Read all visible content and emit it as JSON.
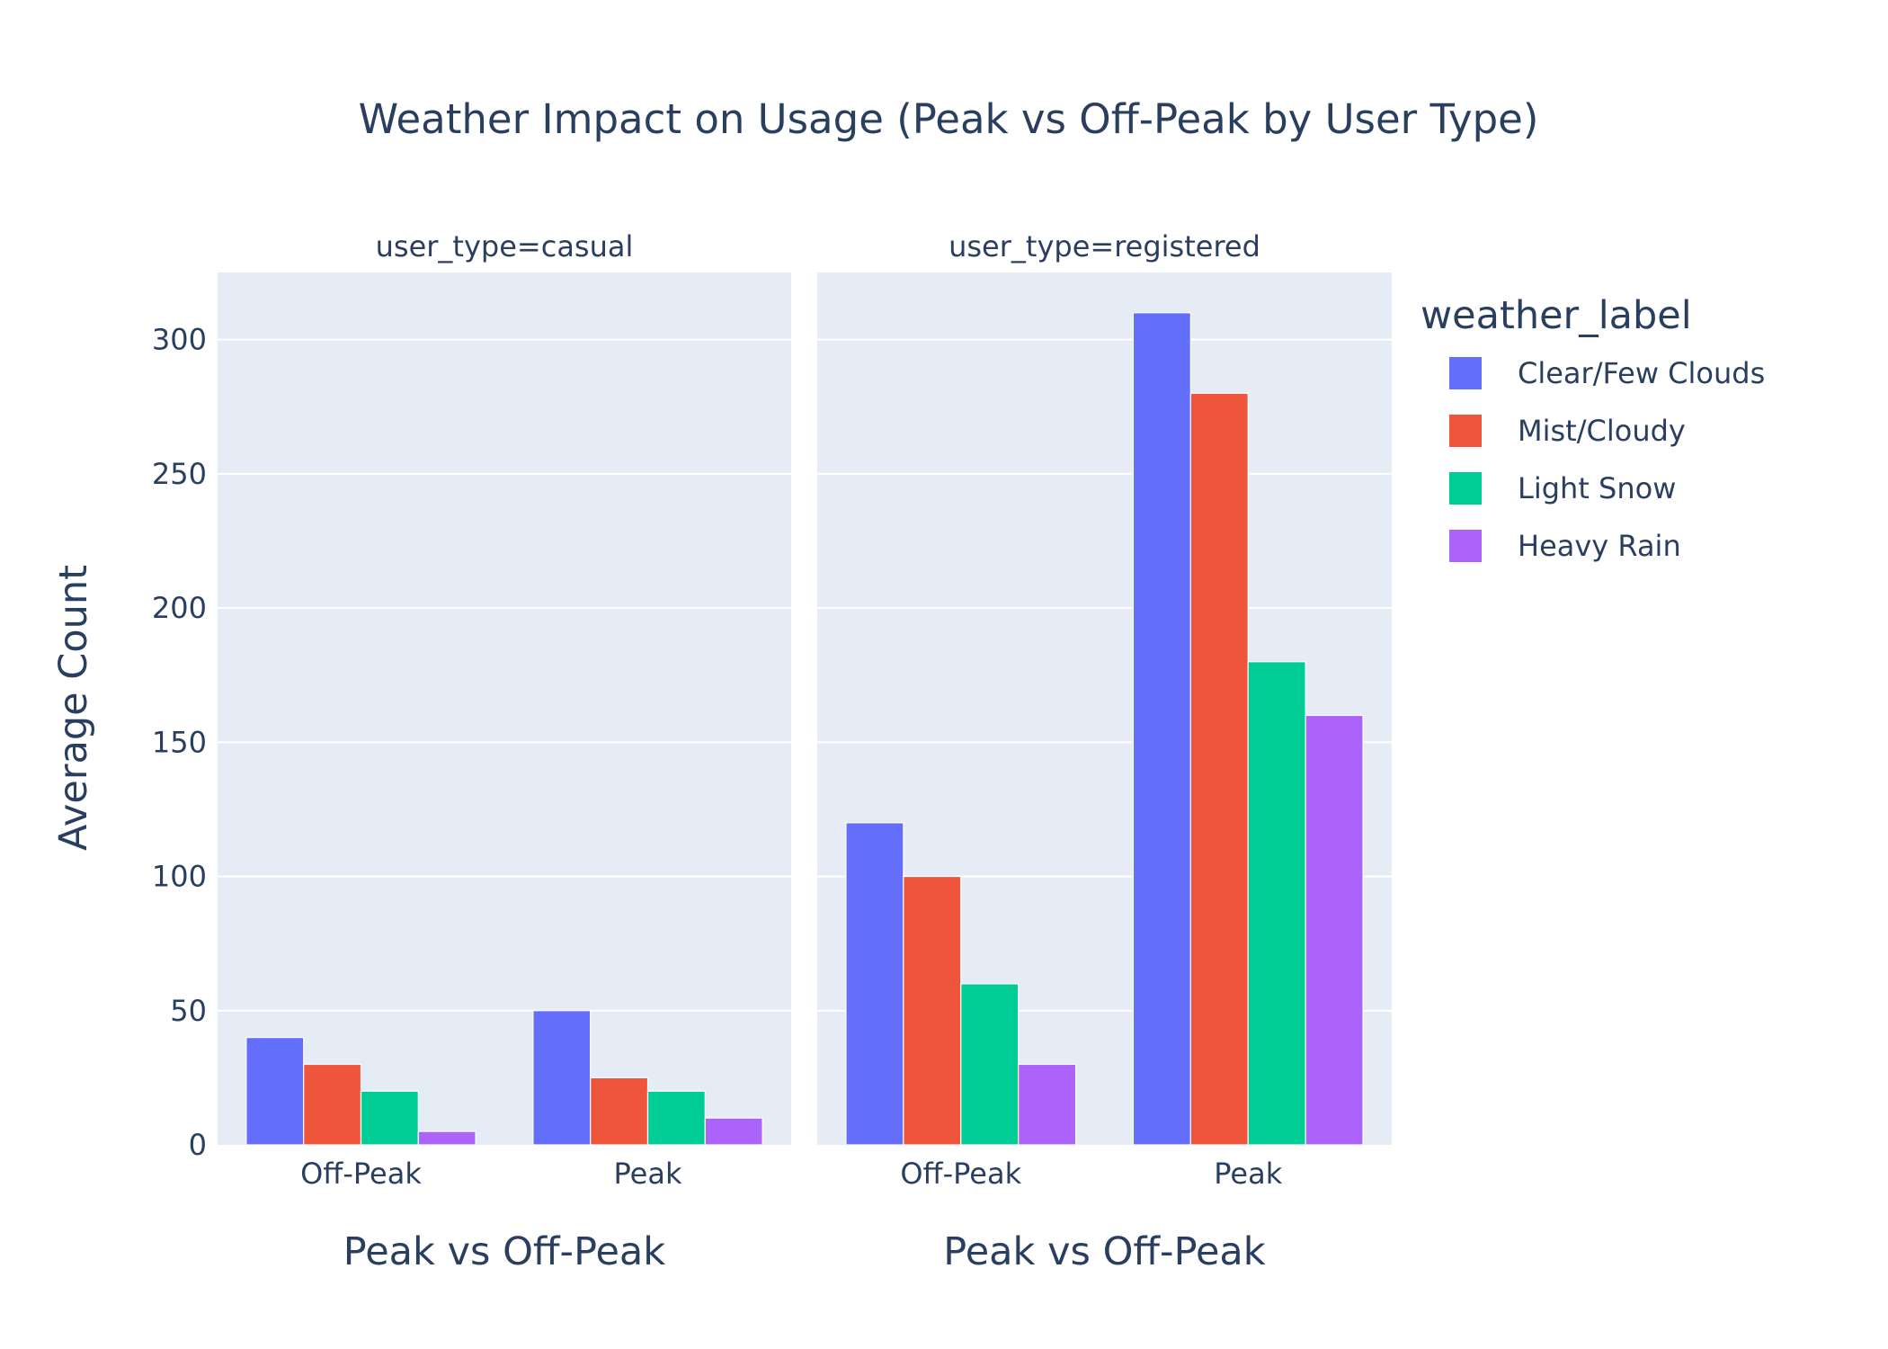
{
  "chart_data": {
    "type": "bar",
    "title": "Weather Impact on Usage (Peak vs Off-Peak by User Type)",
    "ylabel": "Average Count",
    "ylim": [
      0,
      325
    ],
    "yticks": [
      0,
      50,
      100,
      150,
      200,
      250,
      300
    ],
    "legend_title": "weather_label",
    "legend_position": "right",
    "grid": true,
    "categories": [
      "Off-Peak",
      "Peak"
    ],
    "facets": [
      {
        "label": "user_type=casual",
        "xlabel": "Peak vs Off-Peak",
        "series": [
          {
            "name": "Clear/Few Clouds",
            "values": [
              40,
              50
            ]
          },
          {
            "name": "Mist/Cloudy",
            "values": [
              30,
              25
            ]
          },
          {
            "name": "Light Snow",
            "values": [
              20,
              20
            ]
          },
          {
            "name": "Heavy Rain",
            "values": [
              5,
              10
            ]
          }
        ]
      },
      {
        "label": "user_type=registered",
        "xlabel": "Peak vs Off-Peak",
        "series": [
          {
            "name": "Clear/Few Clouds",
            "values": [
              120,
              310
            ]
          },
          {
            "name": "Mist/Cloudy",
            "values": [
              100,
              280
            ]
          },
          {
            "name": "Light Snow",
            "values": [
              60,
              180
            ]
          },
          {
            "name": "Heavy Rain",
            "values": [
              30,
              160
            ]
          }
        ]
      }
    ],
    "colors": {
      "Clear/Few Clouds": "#636efa",
      "Mist/Cloudy": "#ef553b",
      "Light Snow": "#00cc96",
      "Heavy Rain": "#ab63fa",
      "plot_background": "#e5ecf6",
      "text": "#2a3f5f"
    }
  }
}
